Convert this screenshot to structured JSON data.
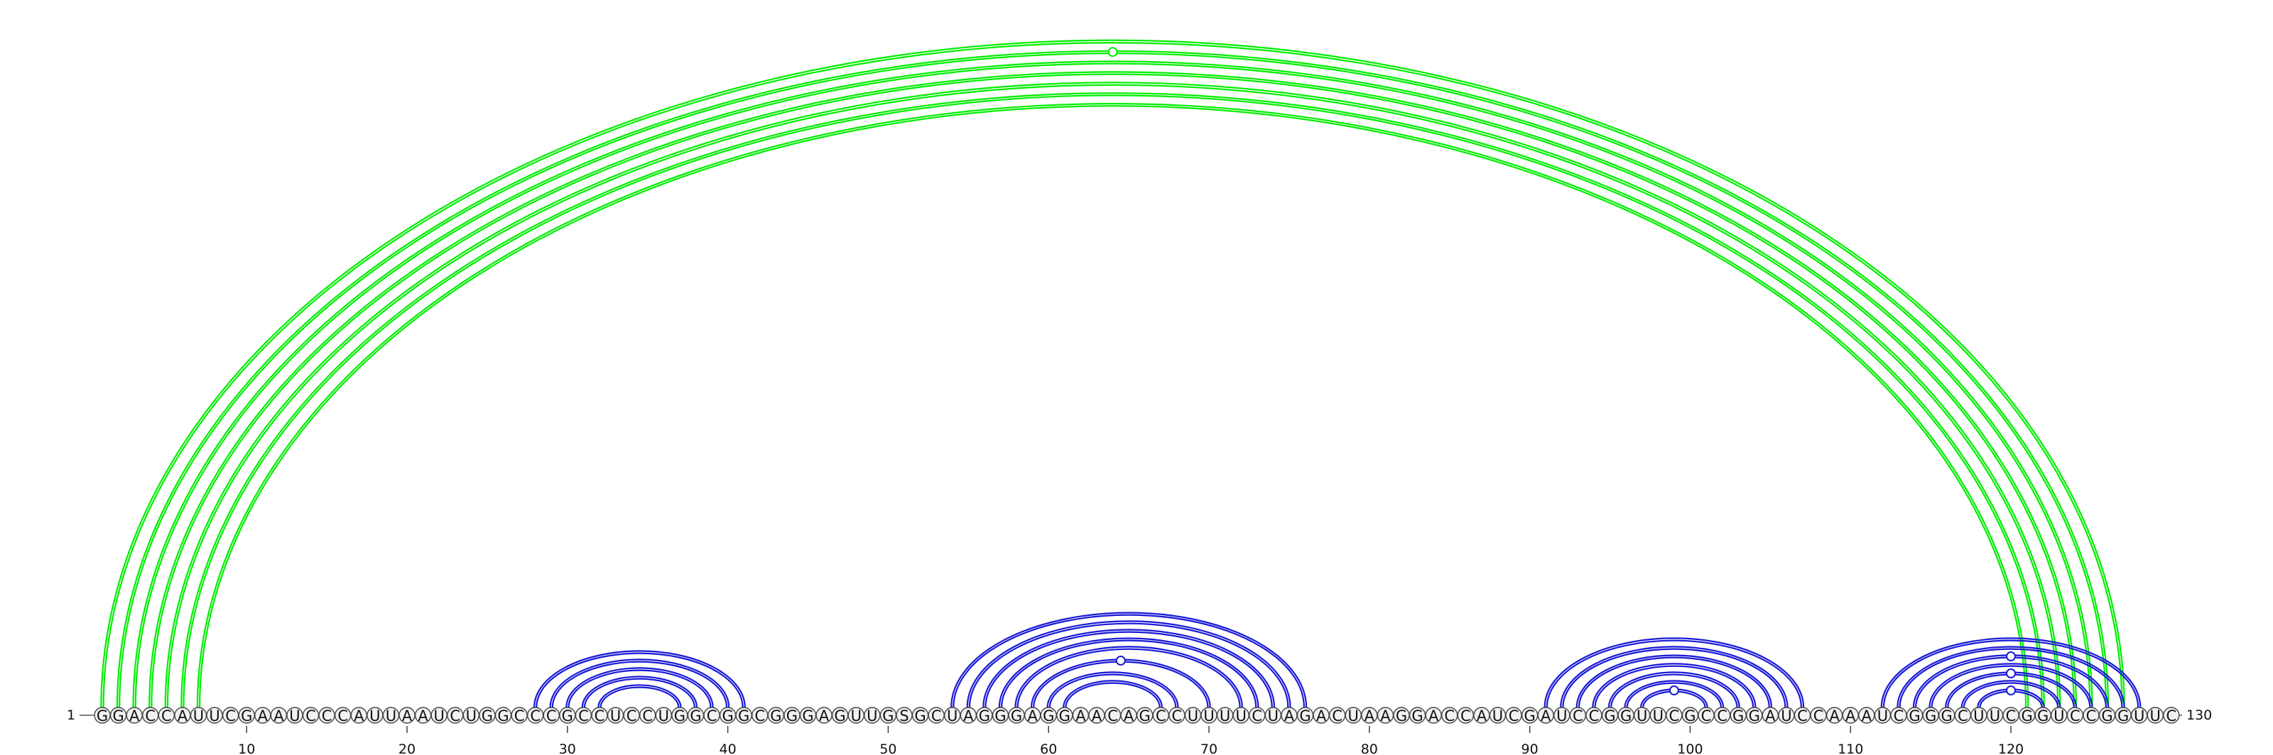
{
  "sequence": "GGACCAUUCGAAUCCCAUUAAUCUGGCCCGCCUCCUGGCGGCGGGAGUUGSGCUAGGGAGGAACAGCCUUUUCUAGACUAAGGACCAUCGAUCCGGUUCGCCGGAUCCAAAUCGGGCUUCGGUCCGGUUC",
  "start_label": "1",
  "end_label": "130",
  "tick_labels": [
    "10",
    "20",
    "30",
    "40",
    "50",
    "60",
    "70",
    "80",
    "90",
    "100",
    "110",
    "120"
  ],
  "colors": {
    "outer": "#00ee00",
    "inner": "#1a1ad6"
  },
  "chart_data": {
    "type": "arc-diagram",
    "length": 130,
    "helices": [
      {
        "group": "outer",
        "pairs": [
          [
            1,
            127
          ],
          [
            2,
            126
          ],
          [
            3,
            125
          ],
          [
            4,
            124
          ],
          [
            5,
            123
          ],
          [
            6,
            122
          ],
          [
            7,
            121
          ]
        ]
      },
      {
        "group": "inner",
        "pairs": [
          [
            28,
            41
          ],
          [
            29,
            40
          ],
          [
            30,
            39
          ],
          [
            31,
            38
          ],
          [
            32,
            37
          ]
        ]
      },
      {
        "group": "inner",
        "pairs": [
          [
            54,
            76
          ],
          [
            55,
            75
          ],
          [
            56,
            74
          ],
          [
            57,
            73
          ],
          [
            58,
            72
          ],
          [
            59,
            70
          ],
          [
            60,
            68
          ],
          [
            61,
            67
          ]
        ]
      },
      {
        "group": "inner",
        "pairs": [
          [
            91,
            107
          ],
          [
            92,
            106
          ],
          [
            93,
            105
          ],
          [
            94,
            104
          ],
          [
            95,
            103
          ],
          [
            96,
            102
          ],
          [
            97,
            101
          ]
        ]
      },
      {
        "group": "inner",
        "pairs": [
          [
            112,
            128
          ],
          [
            113,
            127
          ],
          [
            114,
            126
          ],
          [
            115,
            125
          ],
          [
            116,
            124
          ],
          [
            117,
            123
          ],
          [
            118,
            122
          ]
        ]
      }
    ],
    "ticks": [
      10,
      20,
      30,
      40,
      50,
      60,
      70,
      80,
      90,
      100,
      110,
      120
    ]
  }
}
